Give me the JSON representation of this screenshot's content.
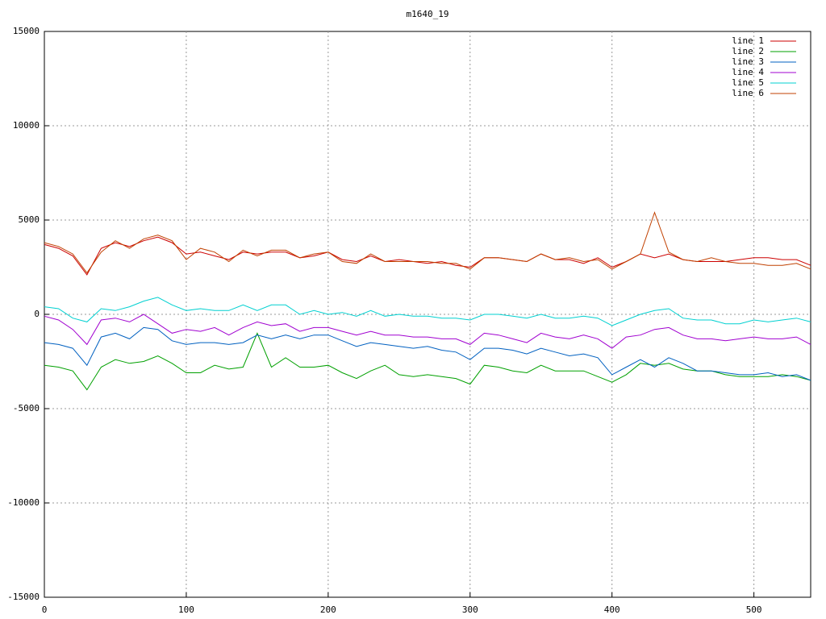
{
  "chart_data": {
    "type": "line",
    "title": "m1640_19",
    "x": [
      0,
      10,
      20,
      30,
      40,
      50,
      60,
      70,
      80,
      90,
      100,
      110,
      120,
      130,
      140,
      150,
      160,
      170,
      180,
      190,
      200,
      210,
      220,
      230,
      240,
      250,
      260,
      270,
      280,
      290,
      300,
      310,
      320,
      330,
      340,
      350,
      360,
      370,
      380,
      390,
      400,
      410,
      420,
      430,
      440,
      450,
      460,
      470,
      480,
      490,
      500,
      510,
      520,
      530,
      540
    ],
    "xlim": [
      0,
      540
    ],
    "xticks": [
      0,
      100,
      200,
      300,
      400,
      500
    ],
    "ylim": [
      -15000,
      15000
    ],
    "yticks": [
      -15000,
      -10000,
      -5000,
      0,
      5000,
      10000,
      15000
    ],
    "grid": true,
    "legend": "upper-right",
    "series": [
      {
        "name": "line 1",
        "color": "#cc0000",
        "values": [
          3700,
          3500,
          3100,
          2100,
          3500,
          3800,
          3600,
          3900,
          4100,
          3800,
          3200,
          3300,
          3100,
          2900,
          3300,
          3200,
          3300,
          3300,
          3000,
          3100,
          3300,
          2900,
          2800,
          3100,
          2800,
          2900,
          2800,
          2700,
          2800,
          2600,
          2500,
          3000,
          3000,
          2900,
          2800,
          3200,
          2900,
          2900,
          2700,
          3000,
          2500,
          2800,
          3200,
          3000,
          3200,
          2900,
          2800,
          2800,
          2800,
          2900,
          3000,
          3000,
          2900,
          2900,
          2600
        ]
      },
      {
        "name": "line 2",
        "color": "#00a000",
        "values": [
          -2700,
          -2800,
          -3000,
          -4000,
          -2800,
          -2400,
          -2600,
          -2500,
          -2200,
          -2600,
          -3100,
          -3100,
          -2700,
          -2900,
          -2800,
          -1000,
          -2800,
          -2300,
          -2800,
          -2800,
          -2700,
          -3100,
          -3400,
          -3000,
          -2700,
          -3200,
          -3300,
          -3200,
          -3300,
          -3400,
          -3700,
          -2700,
          -2800,
          -3000,
          -3100,
          -2700,
          -3000,
          -3000,
          -3000,
          -3300,
          -3600,
          -3200,
          -2600,
          -2700,
          -2600,
          -2900,
          -3000,
          -3000,
          -3200,
          -3300,
          -3300,
          -3300,
          -3200,
          -3300,
          -3500
        ]
      },
      {
        "name": "line 3",
        "color": "#0060c0",
        "values": [
          -1500,
          -1600,
          -1800,
          -2700,
          -1200,
          -1000,
          -1300,
          -700,
          -800,
          -1400,
          -1600,
          -1500,
          -1500,
          -1600,
          -1500,
          -1100,
          -1300,
          -1100,
          -1300,
          -1100,
          -1100,
          -1400,
          -1700,
          -1500,
          -1600,
          -1700,
          -1800,
          -1700,
          -1900,
          -2000,
          -2400,
          -1800,
          -1800,
          -1900,
          -2100,
          -1800,
          -2000,
          -2200,
          -2100,
          -2300,
          -3200,
          -2800,
          -2400,
          -2800,
          -2300,
          -2600,
          -3000,
          -3000,
          -3100,
          -3200,
          -3200,
          -3100,
          -3300,
          -3200,
          -3500
        ]
      },
      {
        "name": "line 4",
        "color": "#a000d0",
        "values": [
          -100,
          -300,
          -800,
          -1600,
          -300,
          -200,
          -400,
          0,
          -500,
          -1000,
          -800,
          -900,
          -700,
          -1100,
          -700,
          -400,
          -600,
          -500,
          -900,
          -700,
          -700,
          -900,
          -1100,
          -900,
          -1100,
          -1100,
          -1200,
          -1200,
          -1300,
          -1300,
          -1600,
          -1000,
          -1100,
          -1300,
          -1500,
          -1000,
          -1200,
          -1300,
          -1100,
          -1300,
          -1800,
          -1200,
          -1100,
          -800,
          -700,
          -1100,
          -1300,
          -1300,
          -1400,
          -1300,
          -1200,
          -1300,
          -1300,
          -1200,
          -1600
        ]
      },
      {
        "name": "line 5",
        "color": "#00d0d0",
        "values": [
          400,
          300,
          -200,
          -400,
          300,
          200,
          400,
          700,
          900,
          500,
          200,
          300,
          200,
          200,
          500,
          200,
          500,
          500,
          0,
          200,
          0,
          100,
          -100,
          200,
          -100,
          0,
          -100,
          -100,
          -200,
          -200,
          -300,
          0,
          0,
          -100,
          -200,
          0,
          -200,
          -200,
          -100,
          -200,
          -600,
          -300,
          0,
          200,
          300,
          -200,
          -300,
          -300,
          -500,
          -500,
          -300,
          -400,
          -300,
          -200,
          -400
        ]
      },
      {
        "name": "line 6",
        "color": "#c04000",
        "values": [
          3800,
          3600,
          3200,
          2200,
          3300,
          3900,
          3500,
          4000,
          4200,
          3900,
          2900,
          3500,
          3300,
          2800,
          3400,
          3100,
          3400,
          3400,
          3000,
          3200,
          3300,
          2800,
          2700,
          3200,
          2800,
          2800,
          2800,
          2800,
          2700,
          2700,
          2400,
          3000,
          3000,
          2900,
          2800,
          3200,
          2900,
          3000,
          2800,
          2900,
          2400,
          2800,
          3200,
          5400,
          3300,
          2900,
          2800,
          3000,
          2800,
          2700,
          2700,
          2600,
          2600,
          2700,
          2400
        ]
      }
    ]
  }
}
